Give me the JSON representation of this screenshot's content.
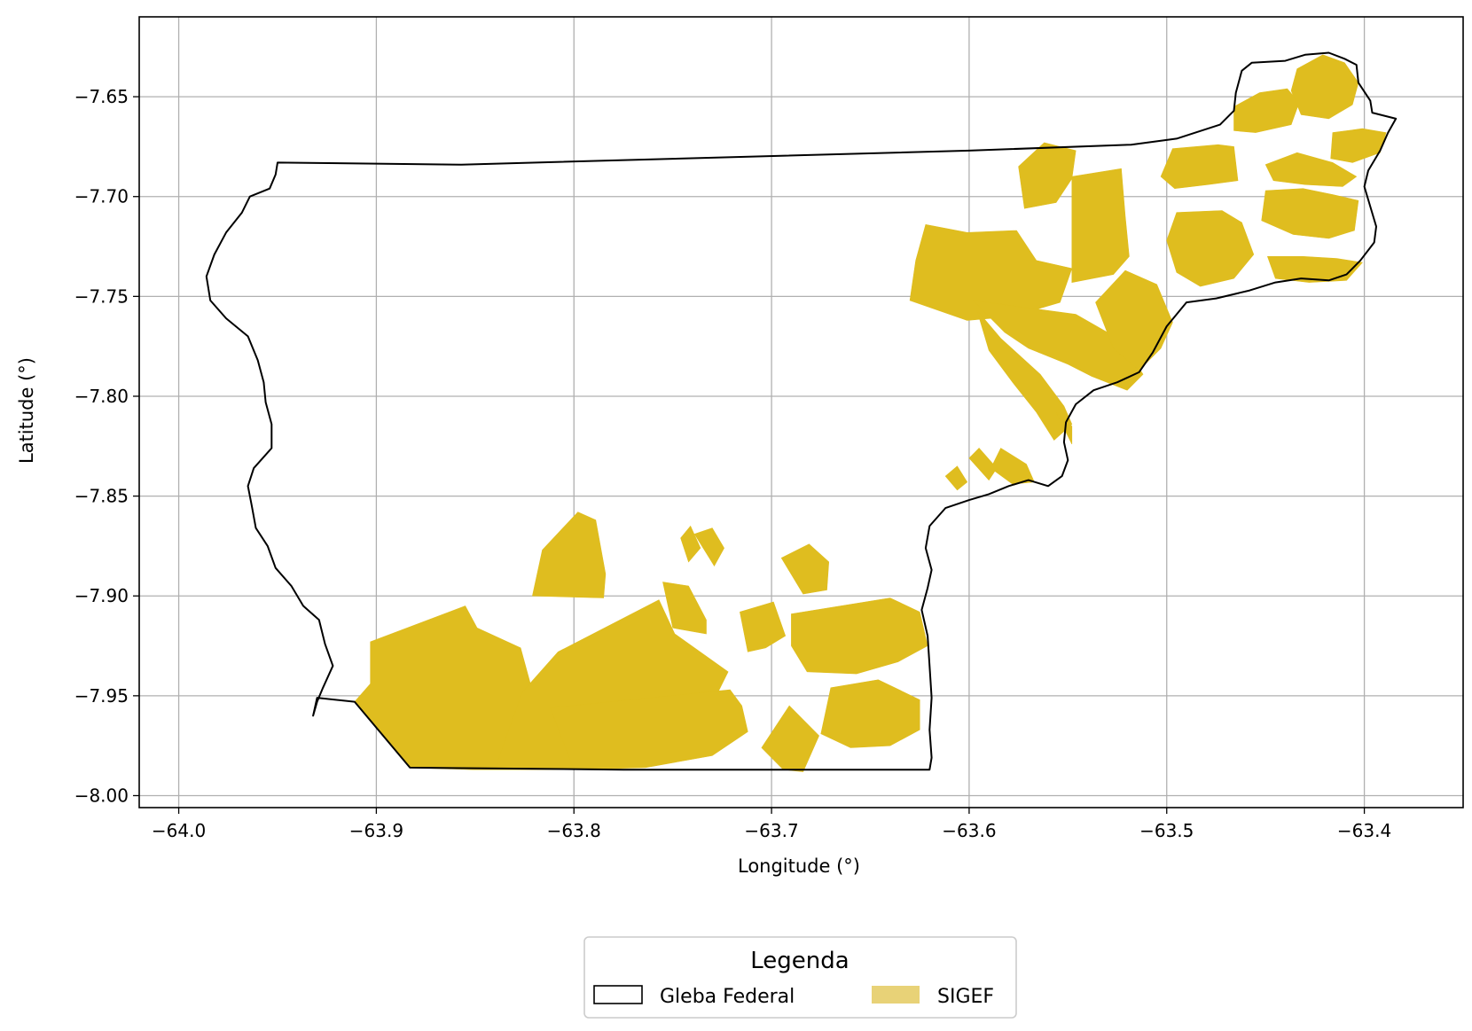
{
  "chart_data": {
    "type": "map",
    "xlabel": "Longitude (°)",
    "ylabel": "Latitude (°)",
    "xlim": [
      -64.02,
      -63.35
    ],
    "ylim": [
      -8.006,
      -7.61
    ],
    "grid": true,
    "x_ticks": [
      -64.0,
      -63.9,
      -63.8,
      -63.7,
      -63.6,
      -63.5,
      -63.4
    ],
    "x_tick_labels": [
      "−64.0",
      "−63.9",
      "−63.8",
      "−63.7",
      "−63.6",
      "−63.5",
      "−63.4"
    ],
    "y_ticks": [
      -7.65,
      -7.7,
      -7.75,
      -7.8,
      -7.85,
      -7.9,
      -7.95,
      -8.0
    ],
    "y_tick_labels": [
      "−7.65",
      "−7.70",
      "−7.75",
      "−7.80",
      "−7.85",
      "−7.90",
      "−7.95",
      "−8.00"
    ],
    "legend": {
      "title": "Legenda",
      "placement": "bottom-center",
      "entries": [
        {
          "label": "Gleba Federal",
          "style": "outline",
          "color": "#000000"
        },
        {
          "label": "SIGEF",
          "style": "fill",
          "color": "#e8d277"
        }
      ]
    },
    "colors": {
      "gleba_outline": "#000000",
      "sigef_fill": "#dfbd1f",
      "grid": "#b0b0b0"
    },
    "gleba_federal": [
      [
        -63.95,
        -7.683
      ],
      [
        -63.857,
        -7.684
      ],
      [
        -63.6,
        -7.677
      ],
      [
        -63.518,
        -7.674
      ],
      [
        -63.495,
        -7.671
      ],
      [
        -63.473,
        -7.664
      ],
      [
        -63.466,
        -7.657
      ],
      [
        -63.465,
        -7.648
      ],
      [
        -63.462,
        -7.637
      ],
      [
        -63.457,
        -7.633
      ],
      [
        -63.44,
        -7.632
      ],
      [
        -63.43,
        -7.629
      ],
      [
        -63.418,
        -7.628
      ],
      [
        -63.41,
        -7.631
      ],
      [
        -63.404,
        -7.634
      ],
      [
        -63.403,
        -7.643
      ],
      [
        -63.397,
        -7.652
      ],
      [
        -63.396,
        -7.658
      ],
      [
        -63.384,
        -7.661
      ],
      [
        -63.388,
        -7.668
      ],
      [
        -63.392,
        -7.677
      ],
      [
        -63.398,
        -7.687
      ],
      [
        -63.4,
        -7.695
      ],
      [
        -63.397,
        -7.705
      ],
      [
        -63.394,
        -7.715
      ],
      [
        -63.395,
        -7.723
      ],
      [
        -63.402,
        -7.732
      ],
      [
        -63.409,
        -7.739
      ],
      [
        -63.418,
        -7.742
      ],
      [
        -63.432,
        -7.741
      ],
      [
        -63.445,
        -7.743
      ],
      [
        -63.458,
        -7.747
      ],
      [
        -63.475,
        -7.751
      ],
      [
        -63.49,
        -7.753
      ],
      [
        -63.5,
        -7.765
      ],
      [
        -63.507,
        -7.778
      ],
      [
        -63.514,
        -7.788
      ],
      [
        -63.525,
        -7.793
      ],
      [
        -63.537,
        -7.797
      ],
      [
        -63.546,
        -7.804
      ],
      [
        -63.551,
        -7.813
      ],
      [
        -63.552,
        -7.823
      ],
      [
        -63.55,
        -7.832
      ],
      [
        -63.553,
        -7.84
      ],
      [
        -63.56,
        -7.845
      ],
      [
        -63.57,
        -7.842
      ],
      [
        -63.58,
        -7.845
      ],
      [
        -63.59,
        -7.849
      ],
      [
        -63.6,
        -7.852
      ],
      [
        -63.612,
        -7.856
      ],
      [
        -63.62,
        -7.865
      ],
      [
        -63.622,
        -7.876
      ],
      [
        -63.619,
        -7.887
      ],
      [
        -63.621,
        -7.896
      ],
      [
        -63.624,
        -7.907
      ],
      [
        -63.621,
        -7.92
      ],
      [
        -63.62,
        -7.935
      ],
      [
        -63.619,
        -7.951
      ],
      [
        -63.62,
        -7.967
      ],
      [
        -63.619,
        -7.981
      ],
      [
        -63.62,
        -7.987
      ],
      [
        -63.7,
        -7.987
      ],
      [
        -63.775,
        -7.987
      ],
      [
        -63.883,
        -7.986
      ],
      [
        -63.911,
        -7.953
      ],
      [
        -63.93,
        -7.951
      ],
      [
        -63.932,
        -7.96
      ],
      [
        -63.93,
        -7.953
      ],
      [
        -63.927,
        -7.946
      ],
      [
        -63.922,
        -7.935
      ],
      [
        -63.926,
        -7.924
      ],
      [
        -63.929,
        -7.912
      ],
      [
        -63.937,
        -7.905
      ],
      [
        -63.943,
        -7.895
      ],
      [
        -63.951,
        -7.886
      ],
      [
        -63.955,
        -7.875
      ],
      [
        -63.961,
        -7.866
      ],
      [
        -63.963,
        -7.855
      ],
      [
        -63.965,
        -7.845
      ],
      [
        -63.962,
        -7.836
      ],
      [
        -63.953,
        -7.826
      ],
      [
        -63.953,
        -7.814
      ],
      [
        -63.956,
        -7.803
      ],
      [
        -63.957,
        -7.793
      ],
      [
        -63.96,
        -7.782
      ],
      [
        -63.965,
        -7.77
      ],
      [
        -63.976,
        -7.761
      ],
      [
        -63.984,
        -7.752
      ],
      [
        -63.986,
        -7.74
      ],
      [
        -63.982,
        -7.729
      ],
      [
        -63.976,
        -7.718
      ],
      [
        -63.968,
        -7.708
      ],
      [
        -63.964,
        -7.7
      ],
      [
        -63.954,
        -7.696
      ],
      [
        -63.951,
        -7.689
      ],
      [
        -63.95,
        -7.683
      ]
    ],
    "sigef": [
      [
        [
          -63.883,
          -7.986
        ],
        [
          -63.911,
          -7.953
        ],
        [
          -63.903,
          -7.944
        ],
        [
          -63.903,
          -7.923
        ],
        [
          -63.855,
          -7.905
        ],
        [
          -63.849,
          -7.916
        ],
        [
          -63.827,
          -7.926
        ],
        [
          -63.819,
          -7.955
        ],
        [
          -63.808,
          -7.968
        ],
        [
          -63.788,
          -7.983
        ],
        [
          -63.787,
          -7.987
        ],
        [
          -63.851,
          -7.987
        ]
      ],
      [
        [
          -63.808,
          -7.928
        ],
        [
          -63.757,
          -7.902
        ],
        [
          -63.749,
          -7.919
        ],
        [
          -63.722,
          -7.938
        ],
        [
          -63.727,
          -7.948
        ],
        [
          -63.784,
          -7.973
        ],
        [
          -63.8,
          -7.986
        ],
        [
          -63.84,
          -7.987
        ],
        [
          -63.833,
          -7.967
        ],
        [
          -63.826,
          -7.948
        ]
      ],
      [
        [
          -63.812,
          -7.956
        ],
        [
          -63.721,
          -7.947
        ],
        [
          -63.715,
          -7.955
        ],
        [
          -63.712,
          -7.968
        ],
        [
          -63.73,
          -7.98
        ],
        [
          -63.764,
          -7.986
        ],
        [
          -63.8,
          -7.987
        ]
      ],
      [
        [
          -63.755,
          -7.893
        ],
        [
          -63.742,
          -7.895
        ],
        [
          -63.733,
          -7.912
        ],
        [
          -63.733,
          -7.919
        ],
        [
          -63.75,
          -7.916
        ]
      ],
      [
        [
          -63.821,
          -7.9
        ],
        [
          -63.816,
          -7.877
        ],
        [
          -63.798,
          -7.858
        ],
        [
          -63.789,
          -7.862
        ],
        [
          -63.784,
          -7.889
        ],
        [
          -63.785,
          -7.901
        ]
      ],
      [
        [
          -63.716,
          -7.908
        ],
        [
          -63.699,
          -7.903
        ],
        [
          -63.693,
          -7.92
        ],
        [
          -63.703,
          -7.926
        ],
        [
          -63.712,
          -7.928
        ]
      ],
      [
        [
          -63.69,
          -7.909
        ],
        [
          -63.665,
          -7.905
        ],
        [
          -63.64,
          -7.901
        ],
        [
          -63.625,
          -7.908
        ],
        [
          -63.621,
          -7.925
        ],
        [
          -63.636,
          -7.933
        ],
        [
          -63.657,
          -7.939
        ],
        [
          -63.682,
          -7.938
        ],
        [
          -63.69,
          -7.925
        ]
      ],
      [
        [
          -63.67,
          -7.946
        ],
        [
          -63.646,
          -7.942
        ],
        [
          -63.625,
          -7.952
        ],
        [
          -63.625,
          -7.967
        ],
        [
          -63.64,
          -7.975
        ],
        [
          -63.66,
          -7.976
        ],
        [
          -63.675,
          -7.969
        ]
      ],
      [
        [
          -63.691,
          -7.955
        ],
        [
          -63.676,
          -7.97
        ],
        [
          -63.684,
          -7.988
        ],
        [
          -63.694,
          -7.987
        ],
        [
          -63.705,
          -7.976
        ]
      ],
      [
        [
          -63.695,
          -7.881
        ],
        [
          -63.681,
          -7.874
        ],
        [
          -63.671,
          -7.883
        ],
        [
          -63.672,
          -7.897
        ],
        [
          -63.684,
          -7.899
        ]
      ],
      [
        [
          -63.739,
          -7.869
        ],
        [
          -63.73,
          -7.866
        ],
        [
          -63.724,
          -7.876
        ],
        [
          -63.729,
          -7.885
        ]
      ],
      [
        [
          -63.746,
          -7.871
        ],
        [
          -63.741,
          -7.865
        ],
        [
          -63.736,
          -7.876
        ],
        [
          -63.742,
          -7.883
        ]
      ],
      [
        [
          -63.63,
          -7.752
        ],
        [
          -63.627,
          -7.732
        ],
        [
          -63.622,
          -7.714
        ],
        [
          -63.601,
          -7.718
        ],
        [
          -63.576,
          -7.717
        ],
        [
          -63.566,
          -7.732
        ],
        [
          -63.548,
          -7.736
        ],
        [
          -63.554,
          -7.753
        ],
        [
          -63.578,
          -7.76
        ],
        [
          -63.601,
          -7.762
        ]
      ],
      [
        [
          -63.575,
          -7.685
        ],
        [
          -63.562,
          -7.673
        ],
        [
          -63.546,
          -7.677
        ],
        [
          -63.548,
          -7.691
        ],
        [
          -63.556,
          -7.703
        ],
        [
          -63.572,
          -7.706
        ]
      ],
      [
        [
          -63.548,
          -7.69
        ],
        [
          -63.523,
          -7.686
        ],
        [
          -63.521,
          -7.71
        ],
        [
          -63.519,
          -7.73
        ],
        [
          -63.527,
          -7.739
        ],
        [
          -63.548,
          -7.743
        ]
      ],
      [
        [
          -63.598,
          -7.752
        ],
        [
          -63.546,
          -7.759
        ],
        [
          -63.523,
          -7.772
        ],
        [
          -63.512,
          -7.789
        ],
        [
          -63.52,
          -7.797
        ],
        [
          -63.538,
          -7.79
        ],
        [
          -63.55,
          -7.784
        ],
        [
          -63.57,
          -7.776
        ],
        [
          -63.582,
          -7.768
        ]
      ],
      [
        [
          -63.521,
          -7.737
        ],
        [
          -63.505,
          -7.744
        ],
        [
          -63.497,
          -7.763
        ],
        [
          -63.503,
          -7.776
        ],
        [
          -63.514,
          -7.787
        ],
        [
          -63.527,
          -7.776
        ],
        [
          -63.536,
          -7.753
        ]
      ],
      [
        [
          -63.596,
          -7.757
        ],
        [
          -63.584,
          -7.771
        ],
        [
          -63.564,
          -7.789
        ],
        [
          -63.552,
          -7.805
        ],
        [
          -63.548,
          -7.814
        ],
        [
          -63.557,
          -7.822
        ],
        [
          -63.566,
          -7.808
        ],
        [
          -63.578,
          -7.793
        ],
        [
          -63.59,
          -7.777
        ]
      ],
      [
        [
          -63.556,
          -7.808
        ],
        [
          -63.548,
          -7.824
        ],
        [
          -63.548,
          -7.815
        ]
      ],
      [
        [
          -63.589,
          -7.836
        ],
        [
          -63.584,
          -7.826
        ],
        [
          -63.571,
          -7.834
        ],
        [
          -63.567,
          -7.843
        ],
        [
          -63.578,
          -7.844
        ]
      ],
      [
        [
          -63.6,
          -7.831
        ],
        [
          -63.595,
          -7.826
        ],
        [
          -63.586,
          -7.836
        ],
        [
          -63.59,
          -7.842
        ]
      ],
      [
        [
          -63.612,
          -7.84
        ],
        [
          -63.606,
          -7.835
        ],
        [
          -63.601,
          -7.843
        ],
        [
          -63.606,
          -7.847
        ]
      ],
      [
        [
          -63.497,
          -7.676
        ],
        [
          -63.474,
          -7.674
        ],
        [
          -63.466,
          -7.675
        ],
        [
          -63.464,
          -7.692
        ],
        [
          -63.479,
          -7.694
        ],
        [
          -63.496,
          -7.696
        ],
        [
          -63.503,
          -7.69
        ]
      ],
      [
        [
          -63.495,
          -7.708
        ],
        [
          -63.472,
          -7.707
        ],
        [
          -63.462,
          -7.713
        ],
        [
          -63.456,
          -7.729
        ],
        [
          -63.466,
          -7.741
        ],
        [
          -63.483,
          -7.745
        ],
        [
          -63.495,
          -7.738
        ],
        [
          -63.5,
          -7.722
        ]
      ],
      [
        [
          -63.45,
          -7.697
        ],
        [
          -63.431,
          -7.696
        ],
        [
          -63.416,
          -7.699
        ],
        [
          -63.403,
          -7.702
        ],
        [
          -63.405,
          -7.717
        ],
        [
          -63.418,
          -7.721
        ],
        [
          -63.436,
          -7.719
        ],
        [
          -63.452,
          -7.712
        ]
      ],
      [
        [
          -63.449,
          -7.73
        ],
        [
          -63.431,
          -7.73
        ],
        [
          -63.414,
          -7.731
        ],
        [
          -63.401,
          -7.733
        ],
        [
          -63.409,
          -7.742
        ],
        [
          -63.428,
          -7.743
        ],
        [
          -63.445,
          -7.741
        ]
      ],
      [
        [
          -63.466,
          -7.655
        ],
        [
          -63.453,
          -7.648
        ],
        [
          -63.439,
          -7.646
        ],
        [
          -63.433,
          -7.653
        ],
        [
          -63.437,
          -7.664
        ],
        [
          -63.455,
          -7.668
        ],
        [
          -63.466,
          -7.667
        ]
      ],
      [
        [
          -63.434,
          -7.636
        ],
        [
          -63.421,
          -7.629
        ],
        [
          -63.41,
          -7.633
        ],
        [
          -63.403,
          -7.643
        ],
        [
          -63.406,
          -7.654
        ],
        [
          -63.418,
          -7.661
        ],
        [
          -63.432,
          -7.659
        ],
        [
          -63.437,
          -7.647
        ]
      ],
      [
        [
          -63.416,
          -7.668
        ],
        [
          -63.401,
          -7.666
        ],
        [
          -63.389,
          -7.668
        ],
        [
          -63.392,
          -7.678
        ],
        [
          -63.406,
          -7.683
        ],
        [
          -63.417,
          -7.681
        ]
      ],
      [
        [
          -63.45,
          -7.684
        ],
        [
          -63.434,
          -7.678
        ],
        [
          -63.416,
          -7.683
        ],
        [
          -63.404,
          -7.69
        ],
        [
          -63.411,
          -7.695
        ],
        [
          -63.43,
          -7.694
        ],
        [
          -63.446,
          -7.692
        ]
      ]
    ]
  }
}
